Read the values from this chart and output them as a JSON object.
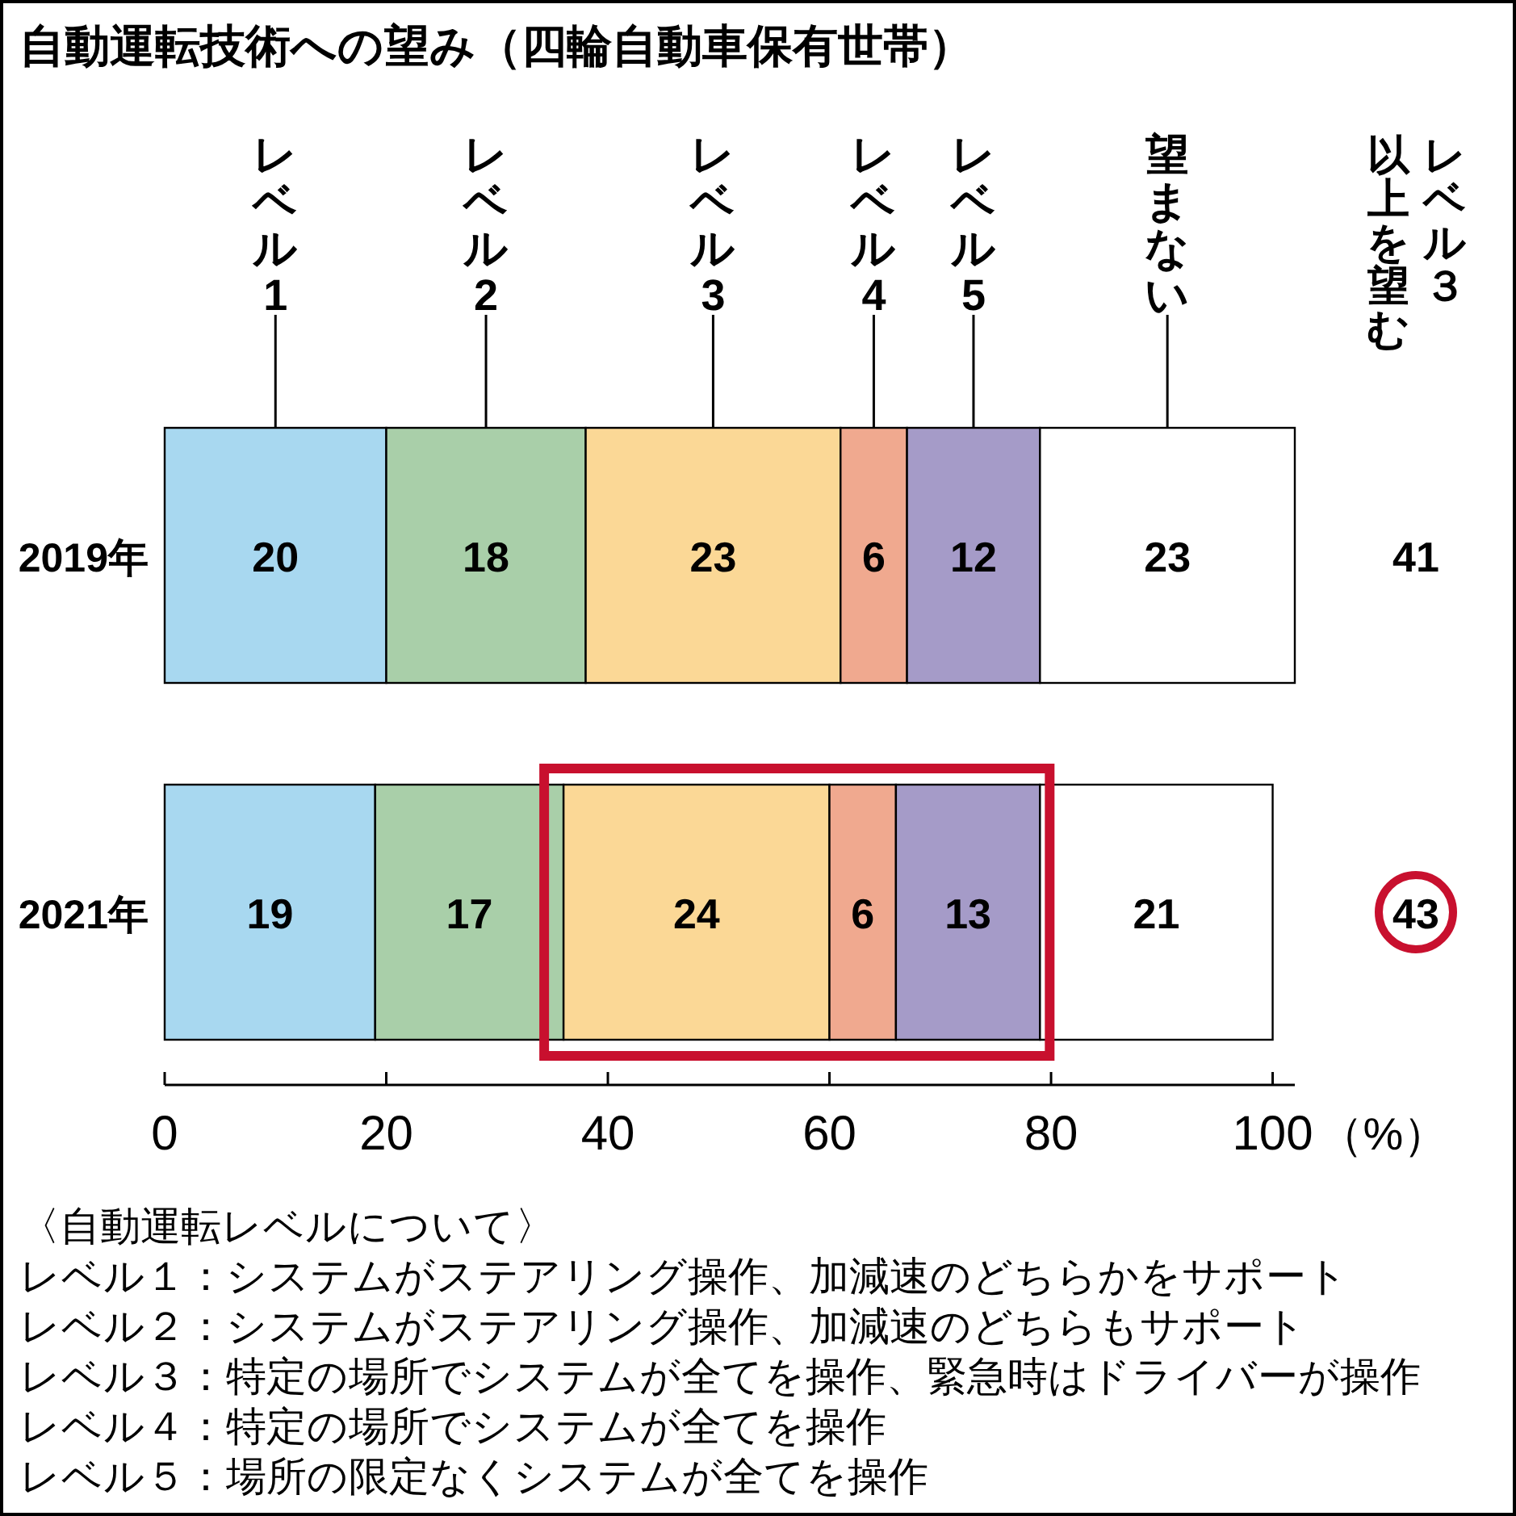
{
  "chart_data": {
    "type": "bar",
    "orientation": "horizontal",
    "stacked": true,
    "title": "自動運転技術への望み（四輪自動車保有世帯）",
    "categories": [
      "2019年",
      "2021年"
    ],
    "series": [
      {
        "name": "レベル1",
        "color": "#a8d8f0",
        "values": [
          20,
          19
        ]
      },
      {
        "name": "レベル2",
        "color": "#a9cfa9",
        "values": [
          18,
          17
        ]
      },
      {
        "name": "レベル3",
        "color": "#fbd896",
        "values": [
          23,
          24
        ]
      },
      {
        "name": "レベル4",
        "color": "#f0a98f",
        "values": [
          6,
          6
        ]
      },
      {
        "name": "レベル5",
        "color": "#a59bc8",
        "values": [
          12,
          13
        ]
      },
      {
        "name": "望まない",
        "color": "#ffffff",
        "values": [
          23,
          21
        ]
      }
    ],
    "data_labels": true,
    "legend": "top",
    "xlim": [
      0,
      102
    ],
    "xticks": [
      0,
      20,
      40,
      60,
      80,
      100
    ],
    "xlabel": "（%）",
    "annotations": [
      "レベル３",
      "以上を望む",
      "41",
      "43",
      "〈自動運転レベルについて〉",
      "レベル１：システムがステアリング操作、加減速のどちらかをサポート",
      "レベル２：システムがステアリング操作、加減速のどちらもサポート",
      "レベル３：特定の場所でシステムが全てを操作、緊急時はドライバーが操作",
      "レベル４：特定の場所でシステムが全てを操作",
      "レベル５：場所の限定なくシステムが全てを操作"
    ]
  }
}
